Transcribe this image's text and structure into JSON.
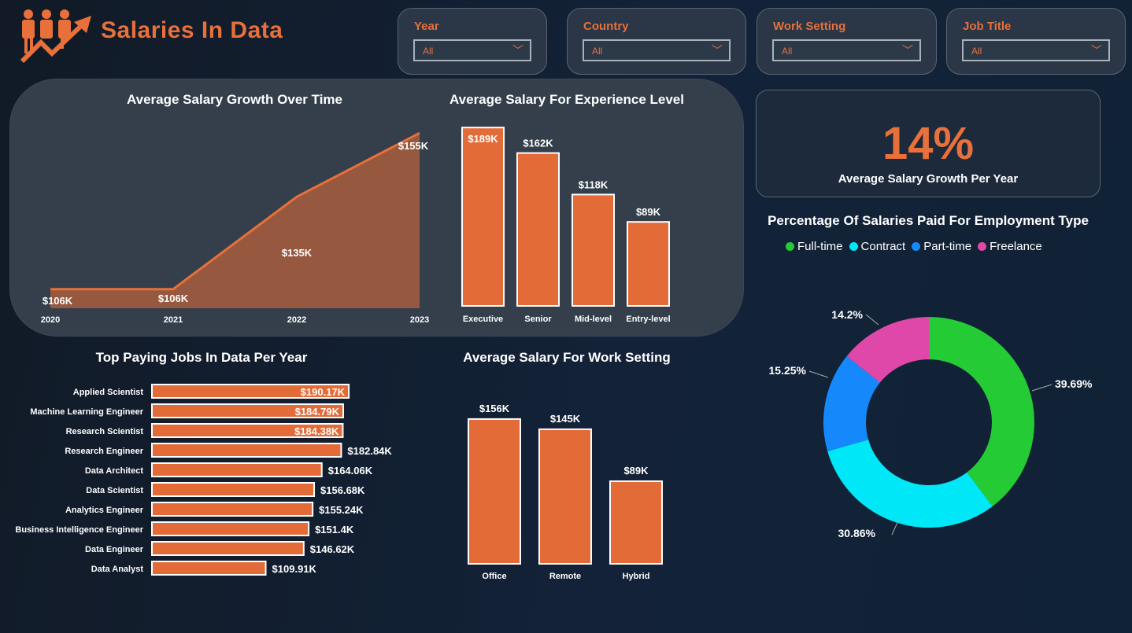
{
  "header": {
    "title": "Salaries In Data",
    "logo": "people-growth-logo"
  },
  "filters": [
    {
      "label": "Year",
      "value": "All"
    },
    {
      "label": "Country",
      "value": "All"
    },
    {
      "label": "Work Setting",
      "value": "All"
    },
    {
      "label": "Job Title",
      "value": "All"
    }
  ],
  "kpi": {
    "value": "14%",
    "label": "Average Salary Growth Per Year"
  },
  "colors": {
    "accent": "#e8703a",
    "bar": "#e36b37"
  },
  "chart_data": [
    {
      "type": "area",
      "title": "Average Salary Growth Over Time",
      "categories": [
        "2020",
        "2021",
        "2022",
        "2023"
      ],
      "values": [
        106,
        106,
        135,
        155
      ],
      "labels": [
        "$106K",
        "$106K",
        "$135K",
        "$155K"
      ],
      "unit": "K USD",
      "ylim": [
        100,
        160
      ]
    },
    {
      "type": "bar",
      "title": "Average Salary For Experience Level",
      "categories": [
        "Executive",
        "Senior",
        "Mid-level",
        "Entry-level"
      ],
      "values": [
        189,
        162,
        118,
        89
      ],
      "labels": [
        "$189K",
        "$162K",
        "$118K",
        "$89K"
      ],
      "ylim": [
        0,
        200
      ]
    },
    {
      "type": "bar",
      "orientation": "horizontal",
      "title": "Top Paying Jobs In Data Per Year",
      "categories": [
        "Applied Scientist",
        "Machine Learning Engineer",
        "Research Scientist",
        "Research Engineer",
        "Data Architect",
        "Data Scientist",
        "Analytics Engineer",
        "Business Intelligence Engineer",
        "Data Engineer",
        "Data Analyst"
      ],
      "values": [
        190.17,
        184.79,
        184.38,
        182.84,
        164.06,
        156.68,
        155.24,
        151.4,
        146.62,
        109.91
      ],
      "labels": [
        "$190.17K",
        "$184.79K",
        "$184.38K",
        "$182.84K",
        "$164.06K",
        "$156.68K",
        "$155.24K",
        "$151.4K",
        "$146.62K",
        "$109.91K"
      ]
    },
    {
      "type": "bar",
      "title": "Average Salary For Work Setting",
      "categories": [
        "Office",
        "Remote",
        "Hybrid"
      ],
      "values": [
        156,
        145,
        89
      ],
      "labels": [
        "$156K",
        "$145K",
        "$89K"
      ],
      "ylim": [
        0,
        160
      ]
    },
    {
      "type": "pie",
      "donut": true,
      "title": "Percentage Of Salaries Paid For Employment Type",
      "categories": [
        "Full-time",
        "Contract",
        "Part-time",
        "Freelance"
      ],
      "values": [
        39.69,
        30.86,
        15.25,
        14.2
      ],
      "labels": [
        "39.69%",
        "30.86%",
        "15.25%",
        "14.2%"
      ],
      "colors": [
        "#24cb35",
        "#00e8f8",
        "#1589fc",
        "#df47a8"
      ],
      "legend": "top"
    }
  ]
}
